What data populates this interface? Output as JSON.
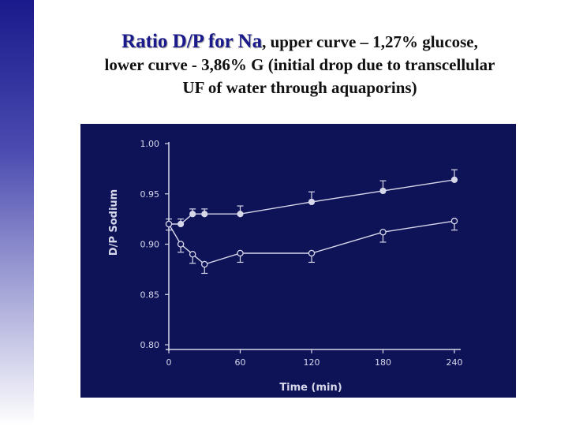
{
  "slide": {
    "title_highlight": "Ratio D/P for Na",
    "title_rest_1": ", upper curve  – 1,27% glucose,",
    "title_line_2": "lower curve - 3,86% G (initial drop due to transcellular",
    "title_line_3": "UF of water through aquaporins)"
  },
  "colors": {
    "panel_bg": "#0e1257",
    "axis": "#d6d8ea",
    "title_accent": "#1a1a8c"
  },
  "chart_data": {
    "type": "line",
    "title": "",
    "xlabel": "Time  (min)",
    "ylabel": "D/P Sodium",
    "xlim": [
      0,
      240
    ],
    "ylim": [
      0.8,
      1.0
    ],
    "x_ticks": [
      0,
      60,
      120,
      180,
      240
    ],
    "x_tick_labels": [
      "0",
      "60",
      "120",
      "180",
      "240"
    ],
    "y_ticks": [
      0.8,
      0.85,
      0.9,
      0.95,
      1.0
    ],
    "y_tick_labels": [
      "0.80",
      "0.85",
      "0.90",
      "0.95",
      "1.00"
    ],
    "series": [
      {
        "name": "1,27% glucose (upper curve)",
        "marker": "filled",
        "x": [
          0,
          10,
          20,
          30,
          60,
          120,
          180,
          240
        ],
        "y": [
          0.92,
          0.92,
          0.93,
          0.93,
          0.93,
          0.942,
          0.953,
          0.964
        ],
        "err": [
          0.005,
          0.005,
          0.005,
          0.005,
          0.008,
          0.01,
          0.01,
          0.01
        ],
        "err_dir": "up"
      },
      {
        "name": "3,86% G (lower curve)",
        "marker": "open",
        "x": [
          0,
          10,
          20,
          30,
          60,
          120,
          180,
          240
        ],
        "y": [
          0.92,
          0.9,
          0.89,
          0.88,
          0.891,
          0.891,
          0.912,
          0.923
        ],
        "err": [
          0.006,
          0.008,
          0.009,
          0.009,
          0.009,
          0.009,
          0.01,
          0.009
        ],
        "err_dir": "down"
      }
    ]
  }
}
